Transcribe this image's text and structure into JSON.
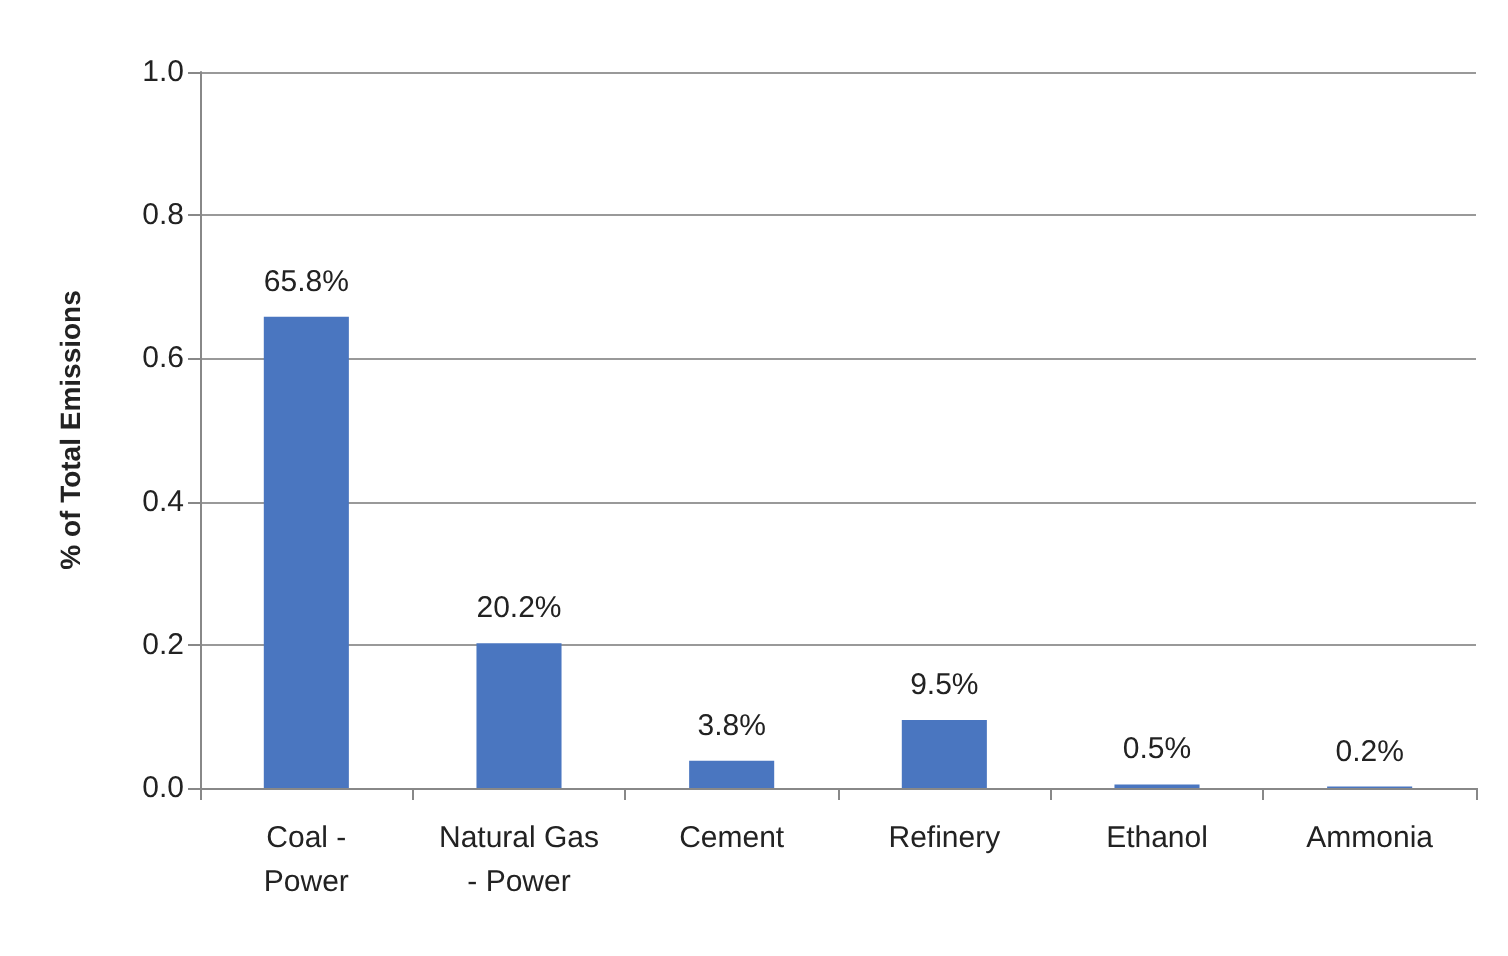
{
  "chart_data": {
    "type": "bar",
    "ylabel": "% of Total Emissions",
    "categories": [
      "Coal -\nPower",
      "Natural Gas\n- Power",
      "Cement",
      "Refinery",
      "Ethanol",
      "Ammonia"
    ],
    "values": [
      0.658,
      0.202,
      0.038,
      0.095,
      0.005,
      0.002
    ],
    "value_labels": [
      "65.8%",
      "20.2%",
      "3.8%",
      "9.5%",
      "0.5%",
      "0.2%"
    ],
    "color": "#4a76c0",
    "ylim": [
      0,
      1
    ],
    "yticks": [
      {
        "value": 0,
        "label": "0.0"
      },
      {
        "value": 0.2,
        "label": "0.2"
      },
      {
        "value": 0.4,
        "label": "0.4"
      },
      {
        "value": 0.6,
        "label": "0.6"
      },
      {
        "value": 0.8,
        "label": "0.8"
      },
      {
        "value": 1,
        "label": "1.0"
      }
    ],
    "grid": "y"
  }
}
